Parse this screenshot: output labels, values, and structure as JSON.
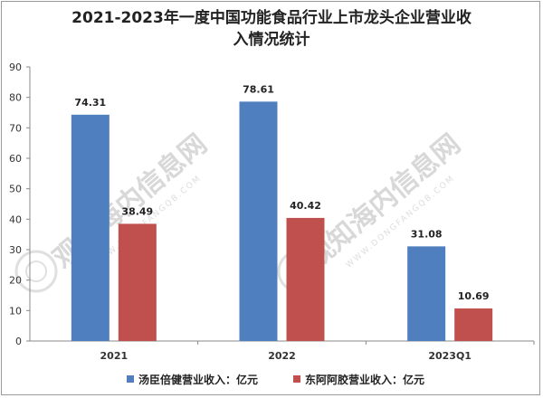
{
  "chart_data": {
    "type": "bar",
    "title_lines": [
      "2021-2023年一度中国功能食品行业上市龙头企业营业收",
      "入情况统计"
    ],
    "categories": [
      "2021",
      "2022",
      "2023Q1"
    ],
    "series": [
      {
        "name": "汤臣倍健营业收入：亿元",
        "color": "#4f7fbf",
        "values": [
          74.31,
          78.61,
          31.08
        ]
      },
      {
        "name": "东阿阿胶营业收入：亿元",
        "color": "#c0504d",
        "values": [
          38.49,
          40.42,
          10.69
        ]
      }
    ],
    "y_ticks": [
      0,
      10,
      20,
      30,
      40,
      50,
      60,
      70,
      80,
      90
    ],
    "ylim": [
      0,
      90
    ],
    "grid": false,
    "legend_position": "bottom"
  },
  "watermark": {
    "text": "观知海内信息网",
    "url": "WWW.DONGFANGQB.COM"
  }
}
